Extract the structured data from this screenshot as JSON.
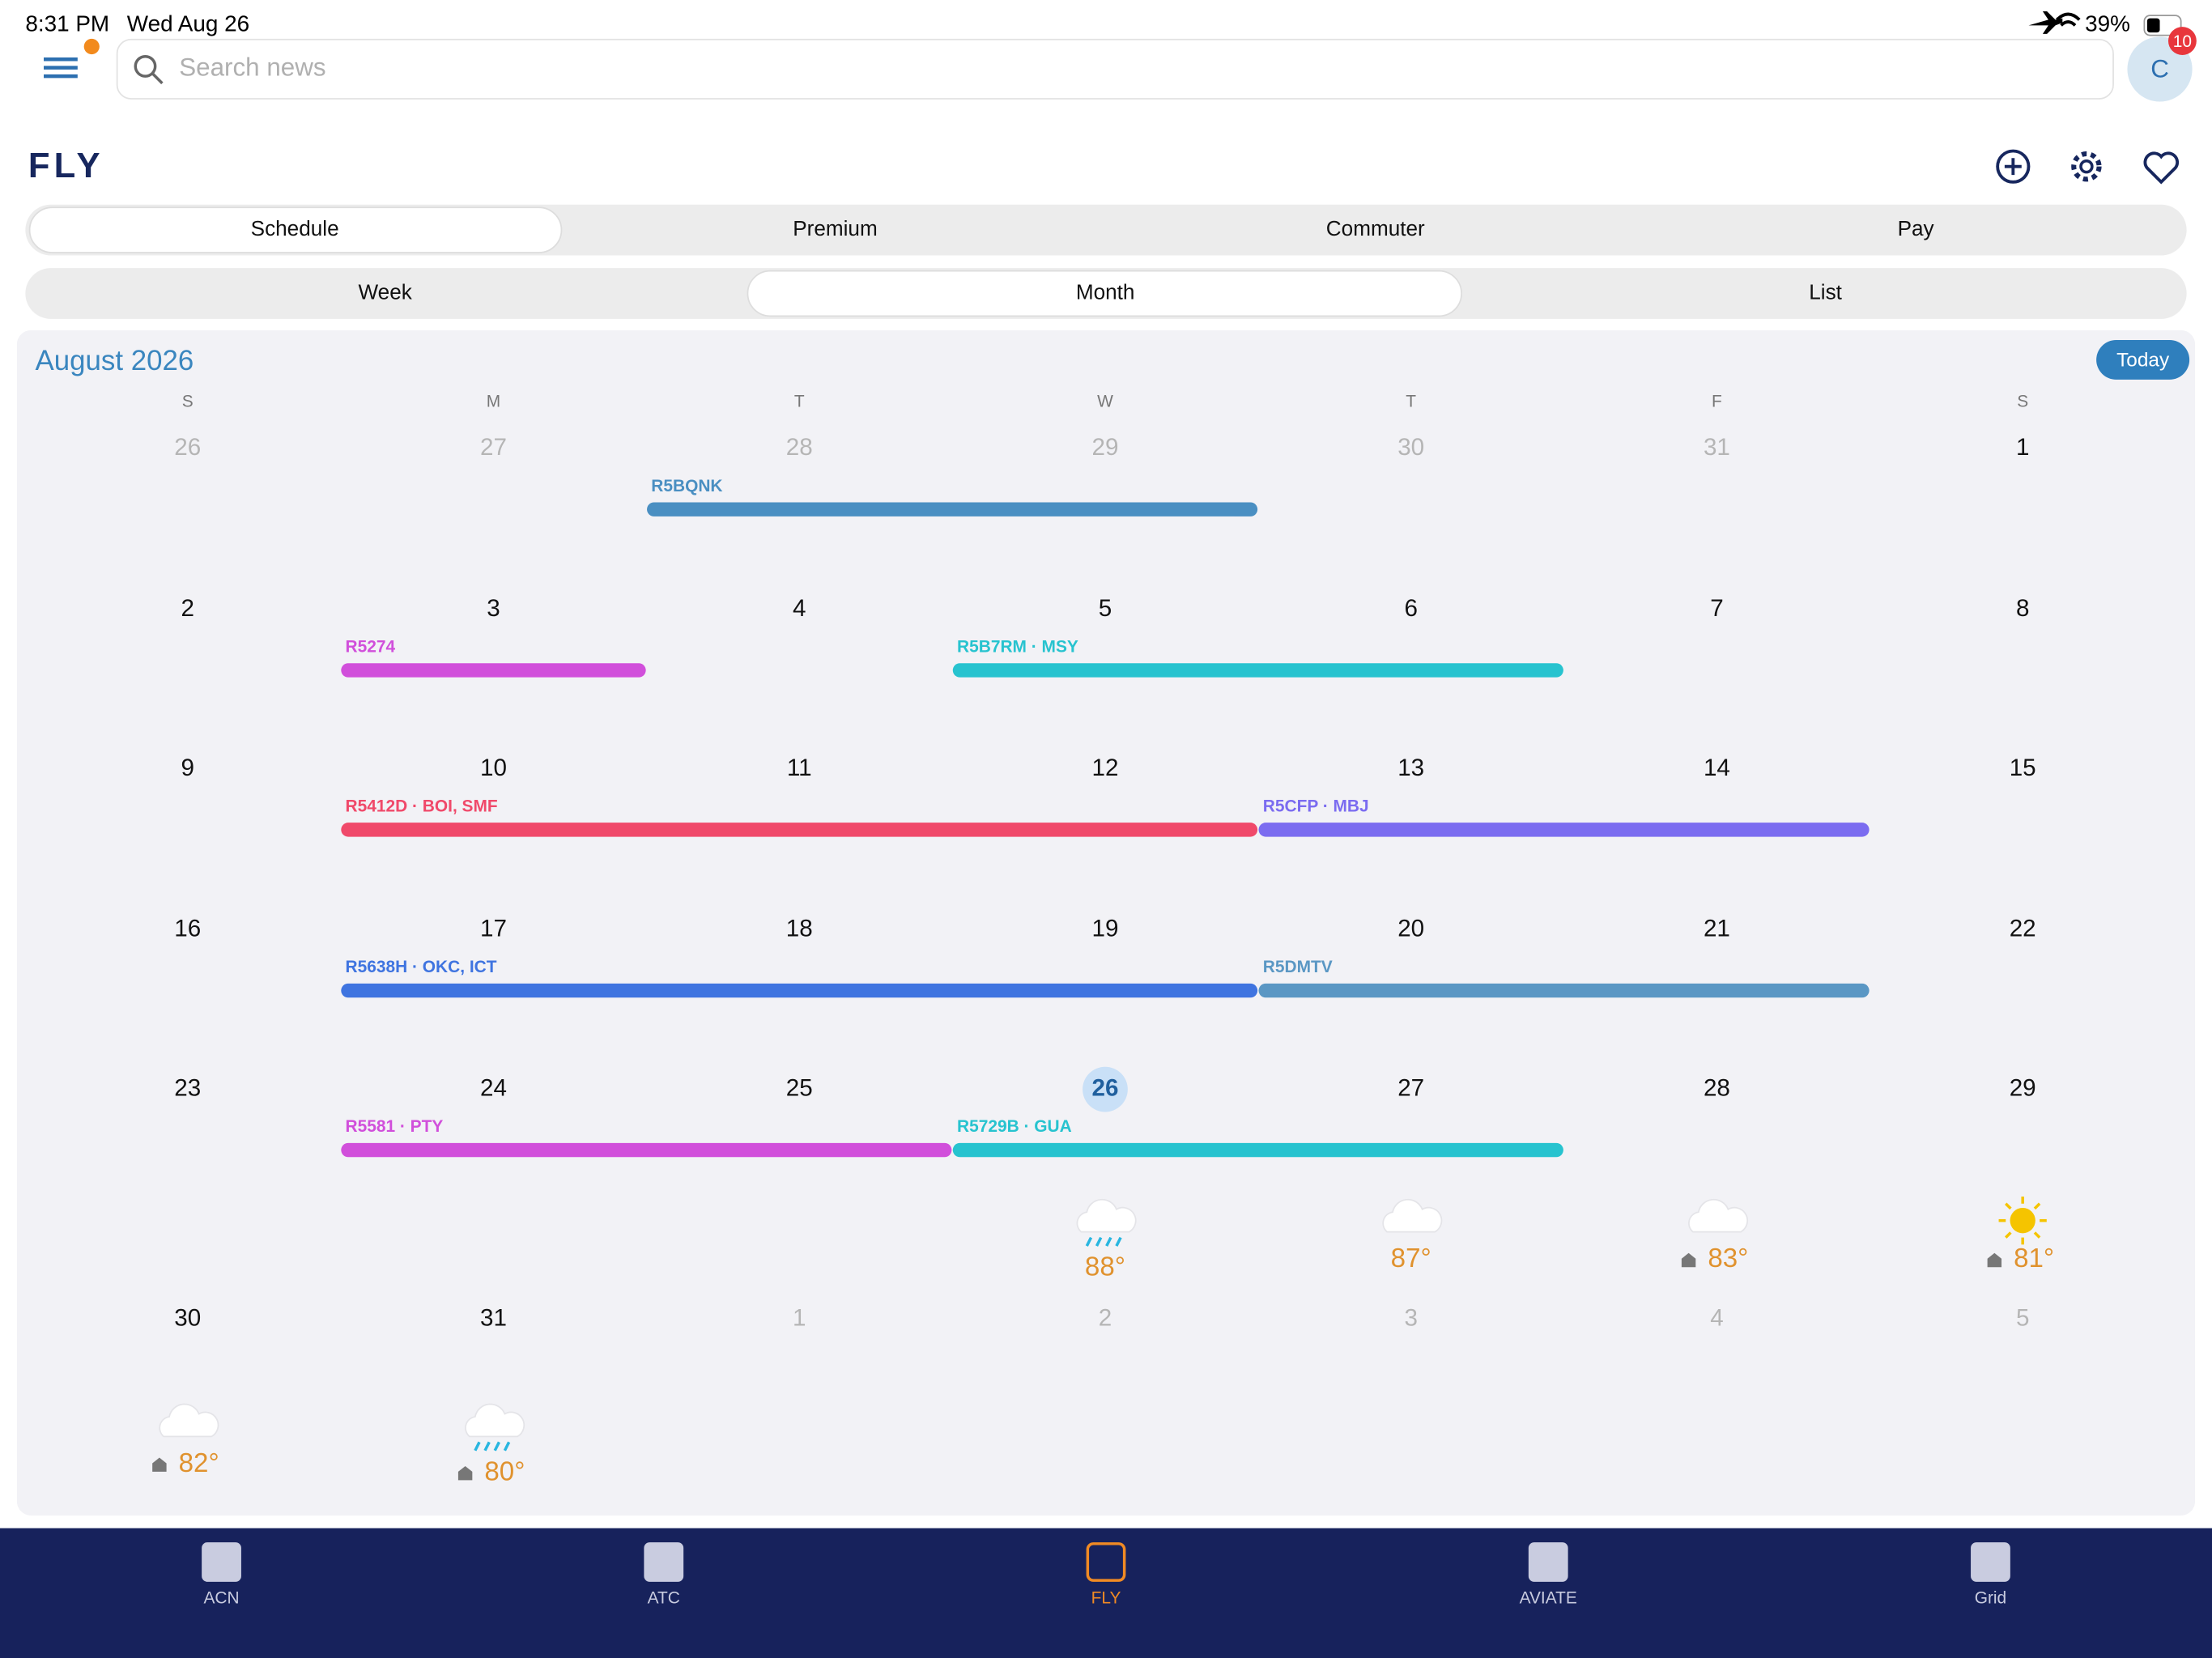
{
  "status": {
    "time": "8:31 PM",
    "date": "Wed Aug 26",
    "battery": "39%"
  },
  "header": {
    "search_placeholder": "Search news",
    "avatar": "C",
    "badge": "10",
    "title": "FLY"
  },
  "tabs": [
    "Schedule",
    "Premium",
    "Commuter",
    "Pay"
  ],
  "views": [
    "Week",
    "Month",
    "List"
  ],
  "calendar": {
    "month": "August 2026",
    "today_button": "Today",
    "weekdays": [
      "S",
      "M",
      "T",
      "W",
      "T",
      "F",
      "S"
    ],
    "weeks": [
      [
        "26",
        "27",
        "28",
        "29",
        "30",
        "31",
        "1"
      ],
      [
        "2",
        "3",
        "4",
        "5",
        "6",
        "7",
        "8"
      ],
      [
        "9",
        "10",
        "11",
        "12",
        "13",
        "14",
        "15"
      ],
      [
        "16",
        "17",
        "18",
        "19",
        "20",
        "21",
        "22"
      ],
      [
        "23",
        "24",
        "25",
        "26",
        "27",
        "28",
        "29"
      ],
      [
        "30",
        "31",
        "1",
        "2",
        "3",
        "4",
        "5"
      ]
    ],
    "trips": [
      {
        "label": "R5BQNK",
        "color": "#4a8fc2"
      },
      {
        "label": "R5274",
        "color": "#d14fdb"
      },
      {
        "label": "R5B7RM · MSY",
        "color": "#27c3cf"
      },
      {
        "label": "R5412D · BOI, SMF",
        "color": "#f0496a"
      },
      {
        "label": "R5CFP · MBJ",
        "color": "#7b6cf0"
      },
      {
        "label": "R5638H · OKC, ICT",
        "color": "#3f74e0"
      },
      {
        "label": "R5DMTV",
        "color": "#5a97c4"
      },
      {
        "label": "R5581 · PTY",
        "color": "#d14fdb"
      },
      {
        "label": "R5729B · GUA",
        "color": "#27c3cf"
      }
    ],
    "weather": [
      "88°",
      "87°",
      "83°",
      "81°",
      "82°",
      "80°"
    ]
  },
  "nav": [
    "ACN",
    "ATC",
    "FLY",
    "AVIATE",
    "Grid"
  ]
}
